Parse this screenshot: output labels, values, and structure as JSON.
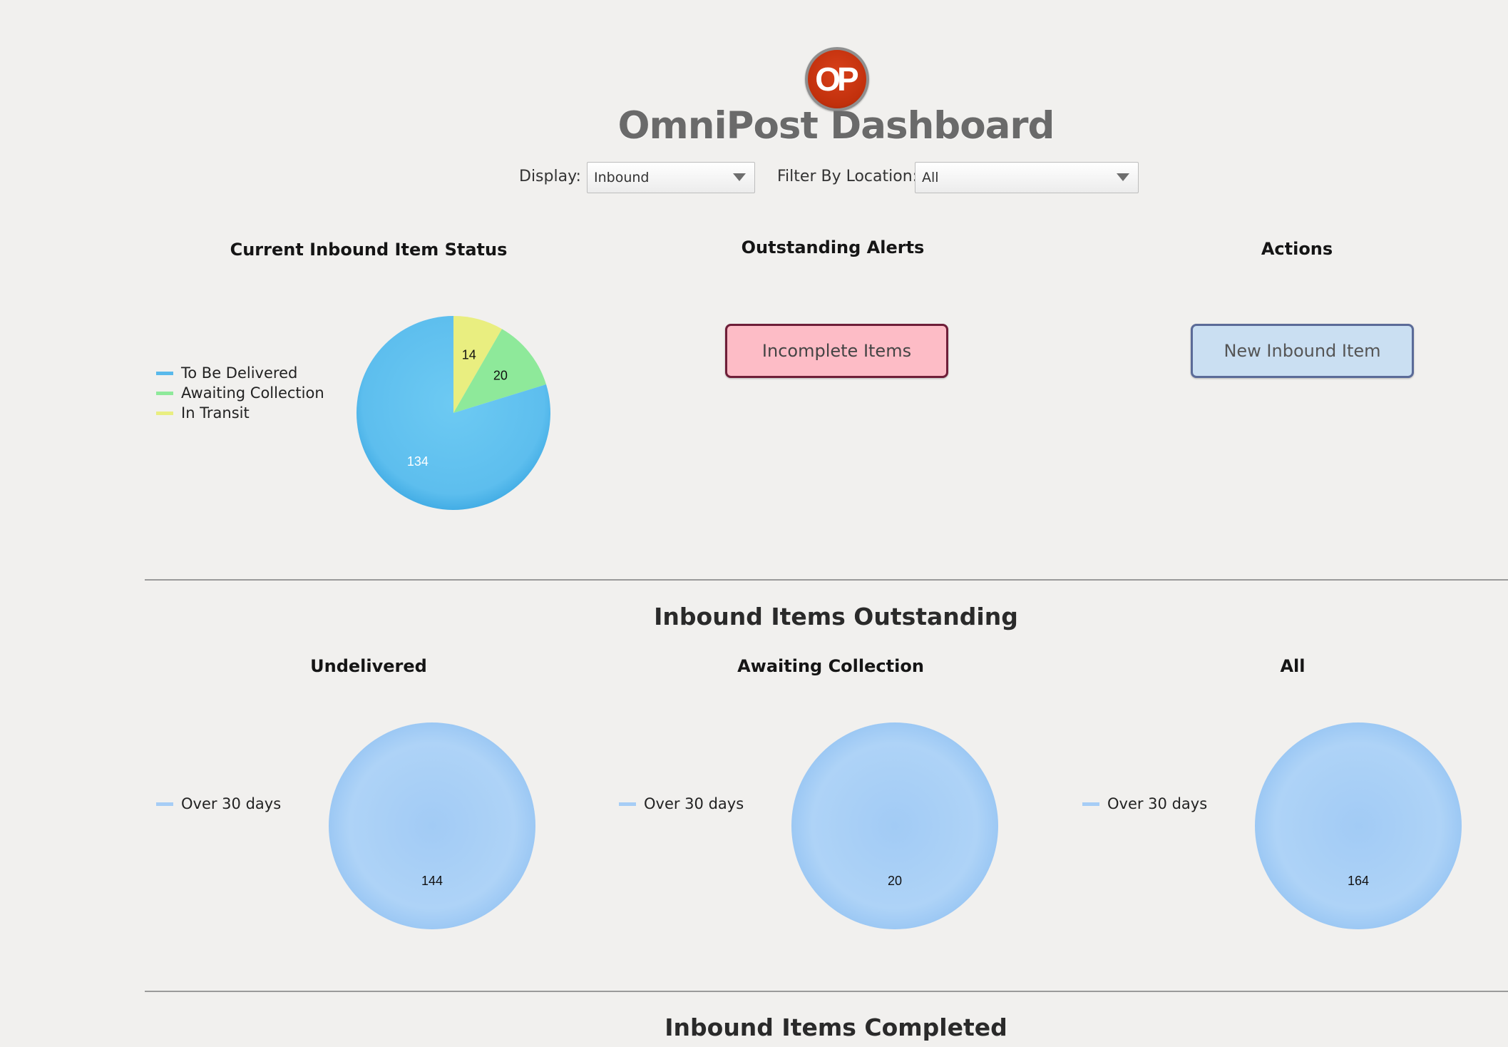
{
  "header": {
    "logo_text": "OP",
    "title": "OmniPost Dashboard"
  },
  "filters": {
    "display_label": "Display:",
    "display_value": "Inbound",
    "location_label": "Filter By Location:",
    "location_value": "All"
  },
  "sections": {
    "status_title": "Current Inbound Item Status",
    "alerts_title": "Outstanding Alerts",
    "actions_title": "Actions",
    "outstanding_title": "Inbound Items Outstanding",
    "completed_title": "Inbound Items Completed"
  },
  "alerts": {
    "incomplete_label": "Incomplete Items"
  },
  "actions": {
    "new_item_label": "New Inbound Item"
  },
  "colors": {
    "to_be_delivered": "#59b9eb",
    "awaiting_collection": "#8ee99a",
    "in_transit": "#e9ee80",
    "over_30_days": "#a6cdf6"
  },
  "chart_data": [
    {
      "type": "pie",
      "title": "Current Inbound Item Status",
      "categories": [
        "To Be Delivered",
        "Awaiting Collection",
        "In Transit"
      ],
      "values": [
        134,
        20,
        14
      ],
      "legend": "left"
    },
    {
      "type": "pie",
      "title": "Undelivered",
      "categories": [
        "Over 30 days"
      ],
      "values": [
        144
      ],
      "legend": "left"
    },
    {
      "type": "pie",
      "title": "Awaiting Collection",
      "categories": [
        "Over 30 days"
      ],
      "values": [
        20
      ],
      "legend": "left"
    },
    {
      "type": "pie",
      "title": "All",
      "categories": [
        "Over 30 days"
      ],
      "values": [
        164
      ],
      "legend": "left"
    }
  ]
}
